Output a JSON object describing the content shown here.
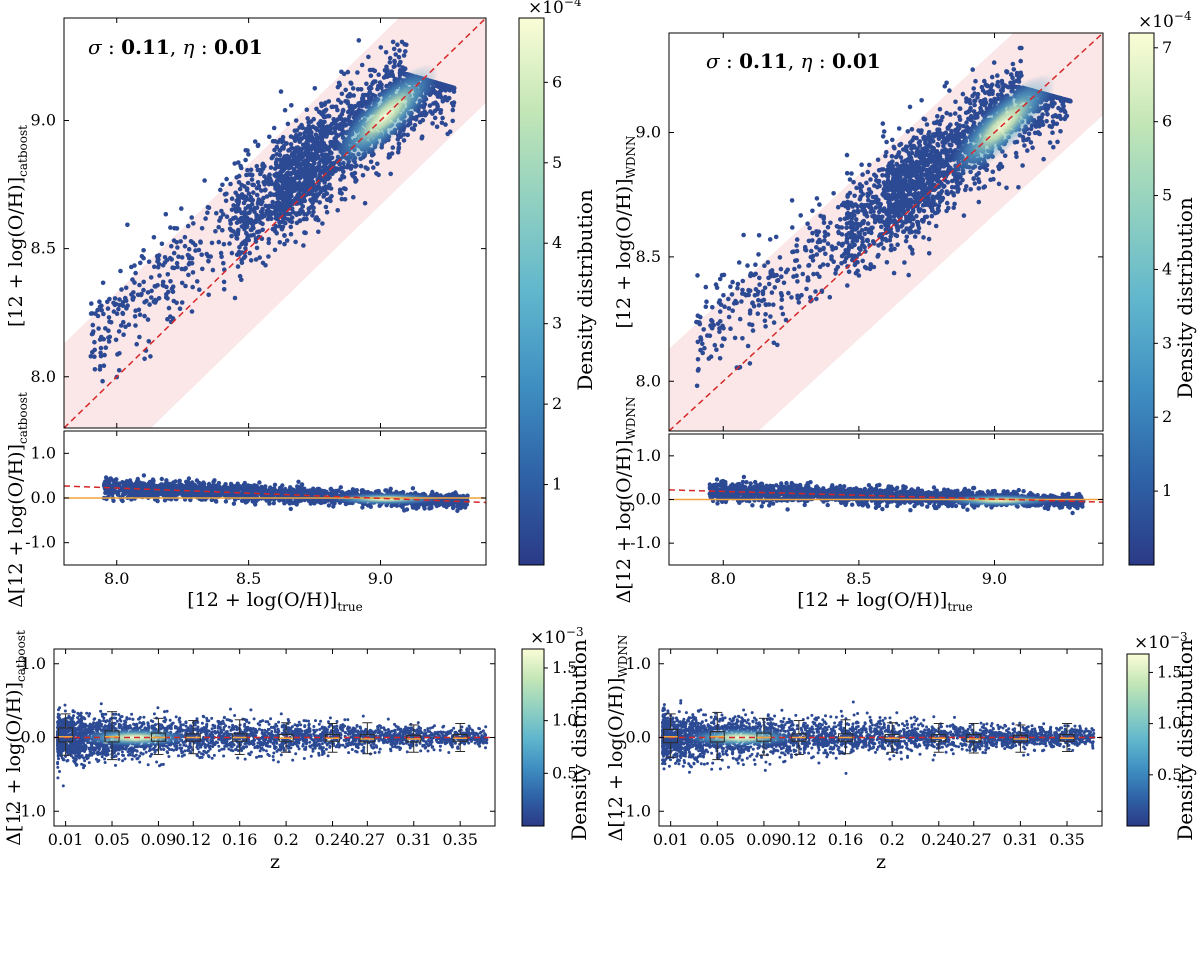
{
  "figure": {
    "colormap": [
      "#2b3a87",
      "#2f64a8",
      "#3f8fc2",
      "#61b7cd",
      "#92d1c0",
      "#c3e6b6",
      "#fbfdd7"
    ],
    "points_color": "#2c4a94",
    "box_color": "#2b2b2b",
    "median_color": "#f0a33c"
  },
  "chart_data": [
    {
      "id": "top-left-main",
      "type": "scatter",
      "model": "catboost",
      "annotation": {
        "sigma_label": "σ",
        "sigma_value": "0.11",
        "eta_label": "η",
        "eta_value": "0.01"
      },
      "ylabel": {
        "main": "[12 + log(O/H)]",
        "sub": "catboost"
      },
      "xlim": [
        7.8,
        9.4
      ],
      "ylim": [
        7.8,
        9.4
      ],
      "x_ticks": [
        "8.0",
        "8.5",
        "9.0"
      ],
      "y_ticks": [
        "8.0",
        "8.5",
        "9.0"
      ],
      "x_tick_values": [
        8.0,
        8.5,
        9.0
      ],
      "y_tick_values": [
        8.0,
        8.5,
        9.0
      ],
      "one_to_one_line": {
        "color": "#d62728",
        "style": "dashed"
      },
      "band": {
        "width": 0.33,
        "color": "#f8d7d7"
      },
      "density_core": {
        "x_center": 9.02,
        "y_center": 9.02
      },
      "seed": 11
    },
    {
      "id": "top-left-resid",
      "type": "scatter",
      "model": "catboost",
      "ylabel": {
        "main": "Δ[12 + log(O/H)]",
        "sub": "catboost"
      },
      "xlabel": {
        "main": "[12 + log(O/H)]",
        "sub": "true"
      },
      "xlim": [
        7.8,
        9.4
      ],
      "ylim": [
        -1.5,
        1.5
      ],
      "x_ticks": [
        "8.0",
        "8.5",
        "9.0"
      ],
      "y_ticks": [
        "-1.0",
        "0.0",
        "1.0"
      ],
      "x_tick_values": [
        8.0,
        8.5,
        9.0
      ],
      "y_tick_values": [
        -1.0,
        0.0,
        1.0
      ],
      "zero_line": {
        "color": "#f0a33c"
      },
      "trend_line": {
        "from": [
          7.8,
          0.27
        ],
        "to": [
          9.4,
          -0.1
        ],
        "color": "#d62728",
        "style": "dashed"
      },
      "seed": 12
    },
    {
      "id": "top-left-colorbar",
      "type": "colorbar",
      "label": "Density distribution",
      "multiplier": "×10",
      "exponent": "−4",
      "range": [
        0,
        6.8
      ],
      "ticks": [
        "1",
        "2",
        "3",
        "4",
        "5",
        "6"
      ],
      "tick_values": [
        1,
        2,
        3,
        4,
        5,
        6
      ]
    },
    {
      "id": "top-right-main",
      "type": "scatter",
      "model": "WDNN",
      "annotation": {
        "sigma_label": "σ",
        "sigma_value": "0.11",
        "eta_label": "η",
        "eta_value": "0.01"
      },
      "ylabel": {
        "main": "[12 + log(O/H)]",
        "sub": "WDNN"
      },
      "xlim": [
        7.8,
        9.4
      ],
      "ylim": [
        7.8,
        9.4
      ],
      "x_ticks": [
        "8.0",
        "8.5",
        "9.0"
      ],
      "y_ticks": [
        "8.0",
        "8.5",
        "9.0"
      ],
      "x_tick_values": [
        8.0,
        8.5,
        9.0
      ],
      "y_tick_values": [
        8.0,
        8.5,
        9.0
      ],
      "one_to_one_line": {
        "color": "#d62728",
        "style": "dashed"
      },
      "band": {
        "width": 0.33,
        "color": "#f8d7d7"
      },
      "density_core": {
        "x_center": 9.03,
        "y_center": 9.03
      },
      "seed": 21
    },
    {
      "id": "top-right-resid",
      "type": "scatter",
      "model": "WDNN",
      "ylabel": {
        "main": "Δ[12 + log(O/H)]",
        "sub": "WDNN"
      },
      "xlabel": {
        "main": "[12 + log(O/H)]",
        "sub": "true"
      },
      "xlim": [
        7.8,
        9.4
      ],
      "ylim": [
        -1.5,
        1.5
      ],
      "x_ticks": [
        "8.0",
        "8.5",
        "9.0"
      ],
      "y_ticks": [
        "-1.0",
        "0.0",
        "1.0"
      ],
      "x_tick_values": [
        8.0,
        8.5,
        9.0
      ],
      "y_tick_values": [
        -1.0,
        0.0,
        1.0
      ],
      "zero_line": {
        "color": "#f0a33c"
      },
      "trend_line": {
        "from": [
          7.8,
          0.22
        ],
        "to": [
          9.4,
          -0.06
        ],
        "color": "#d62728",
        "style": "dashed"
      },
      "seed": 22
    },
    {
      "id": "top-right-colorbar",
      "type": "colorbar",
      "label": "Density distribution",
      "multiplier": "×10",
      "exponent": "−4",
      "range": [
        0,
        7.2
      ],
      "ticks": [
        "1",
        "2",
        "3",
        "4",
        "5",
        "6",
        "7"
      ],
      "tick_values": [
        1,
        2,
        3,
        4,
        5,
        6,
        7
      ]
    },
    {
      "id": "bottom-left-z",
      "type": "scatter",
      "model": "catboost",
      "ylabel": {
        "main": "Δ[12 + log(O/H)]",
        "sub": "catboost"
      },
      "xlabel": {
        "main": "z",
        "sub": ""
      },
      "xlim": [
        0.0,
        0.38
      ],
      "ylim": [
        -1.2,
        1.2
      ],
      "x_ticks": [
        "0.01",
        "0.05",
        "0.09",
        "0.12",
        "0.16",
        "0.2",
        "0.24",
        "0.27",
        "0.31",
        "0.35"
      ],
      "x_tick_values": [
        0.01,
        0.05,
        0.09,
        0.12,
        0.16,
        0.2,
        0.24,
        0.27,
        0.31,
        0.35
      ],
      "y_ticks": [
        "-1.0",
        "0.0",
        "1.0"
      ],
      "y_tick_values": [
        -1.0,
        0.0,
        1.0
      ],
      "zero_line": {
        "color": "#d62728",
        "style": "dashed"
      },
      "boxes": [
        {
          "z": 0.01,
          "q1": -0.06,
          "median": 0.01,
          "q3": 0.13,
          "lo": -0.24,
          "hi": 0.32
        },
        {
          "z": 0.05,
          "q1": -0.06,
          "median": 0.01,
          "q3": 0.09,
          "lo": -0.3,
          "hi": 0.35
        },
        {
          "z": 0.09,
          "q1": -0.05,
          "median": 0.0,
          "q3": 0.06,
          "lo": -0.23,
          "hi": 0.26
        },
        {
          "z": 0.12,
          "q1": -0.05,
          "median": 0.0,
          "q3": 0.05,
          "lo": -0.22,
          "hi": 0.23
        },
        {
          "z": 0.16,
          "q1": -0.05,
          "median": 0.0,
          "q3": 0.05,
          "lo": -0.23,
          "hi": 0.24
        },
        {
          "z": 0.2,
          "q1": -0.05,
          "median": -0.01,
          "q3": 0.04,
          "lo": -0.2,
          "hi": 0.2
        },
        {
          "z": 0.24,
          "q1": -0.05,
          "median": -0.01,
          "q3": 0.04,
          "lo": -0.2,
          "hi": 0.19
        },
        {
          "z": 0.27,
          "q1": -0.06,
          "median": -0.02,
          "q3": 0.04,
          "lo": -0.22,
          "hi": 0.2
        },
        {
          "z": 0.31,
          "q1": -0.06,
          "median": -0.02,
          "q3": 0.03,
          "lo": -0.2,
          "hi": 0.17
        },
        {
          "z": 0.35,
          "q1": -0.05,
          "median": -0.01,
          "q3": 0.04,
          "lo": -0.19,
          "hi": 0.19
        }
      ],
      "seed": 31
    },
    {
      "id": "bottom-left-colorbar",
      "type": "colorbar",
      "label": "Density distribution",
      "multiplier": "×10",
      "exponent": "−3",
      "range": [
        0,
        1.68
      ],
      "ticks": [
        "0.5",
        "1.0",
        "1.5"
      ],
      "tick_values": [
        0.5,
        1.0,
        1.5
      ]
    },
    {
      "id": "bottom-right-z",
      "type": "scatter",
      "model": "WDNN",
      "ylabel": {
        "main": "Δ[12 + log(O/H)]",
        "sub": "WDNN"
      },
      "xlabel": {
        "main": "z",
        "sub": ""
      },
      "xlim": [
        0.0,
        0.38
      ],
      "ylim": [
        -1.2,
        1.2
      ],
      "x_ticks": [
        "0.01",
        "0.05",
        "0.09",
        "0.12",
        "0.16",
        "0.2",
        "0.24",
        "0.27",
        "0.31",
        "0.35"
      ],
      "x_tick_values": [
        0.01,
        0.05,
        0.09,
        0.12,
        0.16,
        0.2,
        0.24,
        0.27,
        0.31,
        0.35
      ],
      "y_ticks": [
        "-1.0",
        "0.0",
        "1.0"
      ],
      "y_tick_values": [
        -1.0,
        0.0,
        1.0
      ],
      "zero_line": {
        "color": "#d62728",
        "style": "dashed"
      },
      "boxes": [
        {
          "z": 0.01,
          "q1": -0.07,
          "median": 0.01,
          "q3": 0.11,
          "lo": -0.27,
          "hi": 0.32
        },
        {
          "z": 0.05,
          "q1": -0.06,
          "median": 0.01,
          "q3": 0.08,
          "lo": -0.3,
          "hi": 0.34
        },
        {
          "z": 0.09,
          "q1": -0.05,
          "median": 0.0,
          "q3": 0.06,
          "lo": -0.24,
          "hi": 0.26
        },
        {
          "z": 0.12,
          "q1": -0.05,
          "median": 0.0,
          "q3": 0.05,
          "lo": -0.23,
          "hi": 0.23
        },
        {
          "z": 0.16,
          "q1": -0.05,
          "median": 0.0,
          "q3": 0.05,
          "lo": -0.22,
          "hi": 0.24
        },
        {
          "z": 0.2,
          "q1": -0.05,
          "median": -0.01,
          "q3": 0.04,
          "lo": -0.2,
          "hi": 0.2
        },
        {
          "z": 0.24,
          "q1": -0.05,
          "median": -0.01,
          "q3": 0.04,
          "lo": -0.2,
          "hi": 0.19
        },
        {
          "z": 0.27,
          "q1": -0.06,
          "median": -0.02,
          "q3": 0.04,
          "lo": -0.21,
          "hi": 0.19
        },
        {
          "z": 0.31,
          "q1": -0.06,
          "median": -0.02,
          "q3": 0.03,
          "lo": -0.2,
          "hi": 0.17
        },
        {
          "z": 0.35,
          "q1": -0.05,
          "median": -0.01,
          "q3": 0.04,
          "lo": -0.19,
          "hi": 0.19
        }
      ],
      "seed": 32
    },
    {
      "id": "bottom-right-colorbar",
      "type": "colorbar",
      "label": "Density distribution",
      "multiplier": "×10",
      "exponent": "−3",
      "range": [
        0,
        1.68
      ],
      "ticks": [
        "0.5",
        "1.0",
        "1.5"
      ],
      "tick_values": [
        0.5,
        1.0,
        1.5
      ]
    }
  ]
}
